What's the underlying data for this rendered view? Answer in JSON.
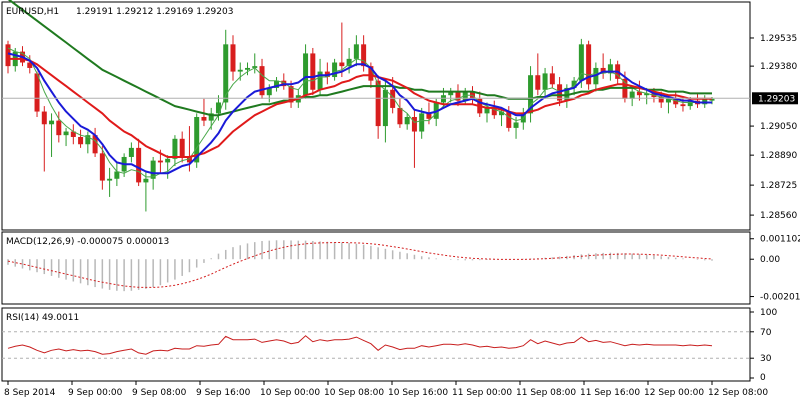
{
  "header": {
    "symbol": "EURUSD,H1",
    "ohlc": "1.29191 1.29212 1.29169 1.29203"
  },
  "chart_data": {
    "type": "candlestick",
    "price_ticks": [
      "1.29535",
      "1.29380",
      "1.29050",
      "1.28890",
      "1.28725",
      "1.28560"
    ],
    "price_ylim": [
      1.285,
      1.297
    ],
    "current_price": "1.29203",
    "x_labels": [
      "8 Sep 2014",
      "9 Sep 00:00",
      "9 Sep 08:00",
      "9 Sep 16:00",
      "10 Sep 00:00",
      "10 Sep 08:00",
      "10 Sep 16:00",
      "11 Sep 00:00",
      "11 Sep 08:00",
      "11 Sep 16:00",
      "12 Sep 00:00",
      "12 Sep 08:00"
    ],
    "candles": [
      [
        1.295,
        1.2952,
        1.2934,
        1.2938
      ],
      [
        1.2938,
        1.2948,
        1.2935,
        1.2946
      ],
      [
        1.2946,
        1.2949,
        1.2938,
        1.294
      ],
      [
        1.294,
        1.2944,
        1.2934,
        1.2937
      ],
      [
        1.2934,
        1.2935,
        1.291,
        1.2913
      ],
      [
        1.2913,
        1.2916,
        1.288,
        1.2906
      ],
      [
        1.2906,
        1.2912,
        1.2888,
        1.2908
      ],
      [
        1.2908,
        1.2913,
        1.2896,
        1.29
      ],
      [
        1.29,
        1.2904,
        1.2894,
        1.2902
      ],
      [
        1.2902,
        1.2906,
        1.2895,
        1.2899
      ],
      [
        1.2899,
        1.2903,
        1.2893,
        1.2895
      ],
      [
        1.2895,
        1.2902,
        1.289,
        1.29
      ],
      [
        1.29,
        1.2904,
        1.2888,
        1.289
      ],
      [
        1.289,
        1.2894,
        1.287,
        1.2875
      ],
      [
        1.2875,
        1.2882,
        1.2866,
        1.2876
      ],
      [
        1.2876,
        1.2885,
        1.2872,
        1.288
      ],
      [
        1.288,
        1.289,
        1.2877,
        1.2888
      ],
      [
        1.2888,
        1.2896,
        1.2885,
        1.2893
      ],
      [
        1.2893,
        1.2898,
        1.2872,
        1.2874
      ],
      [
        1.2874,
        1.288,
        1.2858,
        1.2876
      ],
      [
        1.2876,
        1.2888,
        1.287,
        1.2886
      ],
      [
        1.2886,
        1.2892,
        1.2879,
        1.2885
      ],
      [
        1.2885,
        1.2889,
        1.2876,
        1.2887
      ],
      [
        1.2887,
        1.29,
        1.2883,
        1.2898
      ],
      [
        1.2898,
        1.2902,
        1.2885,
        1.2888
      ],
      [
        1.2888,
        1.2905,
        1.288,
        1.2885
      ],
      [
        1.2885,
        1.2912,
        1.2882,
        1.291
      ],
      [
        1.291,
        1.292,
        1.2905,
        1.2908
      ],
      [
        1.2908,
        1.2915,
        1.2903,
        1.2912
      ],
      [
        1.2912,
        1.2922,
        1.2908,
        1.2918
      ],
      [
        1.2918,
        1.2958,
        1.2914,
        1.295
      ],
      [
        1.295,
        1.2955,
        1.293,
        1.2935
      ],
      [
        1.2935,
        1.294,
        1.293,
        1.2936
      ],
      [
        1.2936,
        1.294,
        1.2933,
        1.2937
      ],
      [
        1.2937,
        1.2945,
        1.2934,
        1.2938
      ],
      [
        1.2938,
        1.2942,
        1.292,
        1.2922
      ],
      [
        1.2922,
        1.2928,
        1.2918,
        1.2926
      ],
      [
        1.2926,
        1.2932,
        1.2924,
        1.293
      ],
      [
        1.293,
        1.2934,
        1.2925,
        1.2927
      ],
      [
        1.2927,
        1.293,
        1.2915,
        1.2918
      ],
      [
        1.2918,
        1.2925,
        1.2915,
        1.2922
      ],
      [
        1.2922,
        1.295,
        1.292,
        1.2945
      ],
      [
        1.2945,
        1.2948,
        1.2922,
        1.2925
      ],
      [
        1.2925,
        1.2942,
        1.2922,
        1.2935
      ],
      [
        1.2935,
        1.294,
        1.2928,
        1.2932
      ],
      [
        1.2932,
        1.2942,
        1.293,
        1.294
      ],
      [
        1.294,
        1.2962,
        1.2932,
        1.2938
      ],
      [
        1.2938,
        1.2948,
        1.2934,
        1.2942
      ],
      [
        1.2942,
        1.2955,
        1.2938,
        1.295
      ],
      [
        1.295,
        1.2955,
        1.2935,
        1.2938
      ],
      [
        1.2938,
        1.294,
        1.2926,
        1.293
      ],
      [
        1.293,
        1.2933,
        1.2898,
        1.2905
      ],
      [
        1.2905,
        1.293,
        1.2896,
        1.2925
      ],
      [
        1.2925,
        1.2932,
        1.2912,
        1.2915
      ],
      [
        1.2915,
        1.292,
        1.2904,
        1.2906
      ],
      [
        1.2906,
        1.2912,
        1.2903,
        1.291
      ],
      [
        1.291,
        1.2914,
        1.2882,
        1.2902
      ],
      [
        1.2902,
        1.2915,
        1.2898,
        1.2912
      ],
      [
        1.2912,
        1.2918,
        1.2906,
        1.2909
      ],
      [
        1.2909,
        1.292,
        1.2905,
        1.2918
      ],
      [
        1.2918,
        1.2926,
        1.2915,
        1.2922
      ],
      [
        1.2922,
        1.2926,
        1.2918,
        1.2924
      ],
      [
        1.2924,
        1.2928,
        1.2916,
        1.2919
      ],
      [
        1.2919,
        1.2926,
        1.2917,
        1.2924
      ],
      [
        1.2924,
        1.2927,
        1.2917,
        1.292
      ],
      [
        1.292,
        1.2924,
        1.291,
        1.2912
      ],
      [
        1.2912,
        1.2918,
        1.2907,
        1.2915
      ],
      [
        1.2915,
        1.2919,
        1.2909,
        1.2911
      ],
      [
        1.2911,
        1.2915,
        1.2905,
        1.2913
      ],
      [
        1.2913,
        1.2916,
        1.2902,
        1.2904
      ],
      [
        1.2904,
        1.291,
        1.2898,
        1.2907
      ],
      [
        1.2907,
        1.2915,
        1.2903,
        1.2912
      ],
      [
        1.2912,
        1.2938,
        1.2907,
        1.2933
      ],
      [
        1.2933,
        1.2945,
        1.2922,
        1.2925
      ],
      [
        1.2925,
        1.2937,
        1.292,
        1.2934
      ],
      [
        1.2934,
        1.2938,
        1.2926,
        1.2928
      ],
      [
        1.2928,
        1.2932,
        1.2916,
        1.2919
      ],
      [
        1.2919,
        1.2928,
        1.2915,
        1.2926
      ],
      [
        1.2926,
        1.2932,
        1.2922,
        1.293
      ],
      [
        1.293,
        1.2953,
        1.2926,
        1.295
      ],
      [
        1.295,
        1.2952,
        1.2925,
        1.2928
      ],
      [
        1.2928,
        1.294,
        1.2924,
        1.2937
      ],
      [
        1.2937,
        1.2945,
        1.2931,
        1.2934
      ],
      [
        1.2934,
        1.2942,
        1.293,
        1.2939
      ],
      [
        1.2939,
        1.2941,
        1.2928,
        1.2931
      ],
      [
        1.2931,
        1.2935,
        1.2918,
        1.292
      ],
      [
        1.292,
        1.2927,
        1.2916,
        1.2924
      ],
      [
        1.2924,
        1.293,
        1.2919,
        1.2922
      ],
      [
        1.2922,
        1.2926,
        1.2917,
        1.2923
      ],
      [
        1.2923,
        1.2926,
        1.2918,
        1.2921
      ],
      [
        1.2921,
        1.2924,
        1.2915,
        1.2918
      ],
      [
        1.2918,
        1.2922,
        1.2912,
        1.292
      ],
      [
        1.292,
        1.2924,
        1.2915,
        1.2917
      ],
      [
        1.2917,
        1.292,
        1.2913,
        1.2916
      ],
      [
        1.2916,
        1.2921,
        1.2914,
        1.2919
      ],
      [
        1.2919,
        1.2923,
        1.2915,
        1.2917
      ],
      [
        1.2917,
        1.2922,
        1.2915,
        1.292
      ],
      [
        1.2919,
        1.2921,
        1.2917,
        1.292
      ]
    ],
    "ma_blue": [
      1.2945,
      1.2944,
      1.2943,
      1.2941,
      1.2937,
      1.293,
      1.2924,
      1.2918,
      1.2913,
      1.2909,
      1.2905,
      1.2903,
      1.29,
      1.2895,
      1.2889,
      1.2885,
      1.2884,
      1.2884,
      1.2882,
      1.288,
      1.2879,
      1.2879,
      1.2879,
      1.2881,
      1.2883,
      1.2884,
      1.2888,
      1.2892,
      1.2896,
      1.2901,
      1.2908,
      1.2913,
      1.2917,
      1.2921,
      1.2924,
      1.2925,
      1.2926,
      1.2927,
      1.2928,
      1.2928,
      1.2929,
      1.2932,
      1.2932,
      1.2933,
      1.2933,
      1.2934,
      1.2935,
      1.2937,
      1.2939,
      1.2939,
      1.2937,
      1.2932,
      1.293,
      1.2927,
      1.2922,
      1.2919,
      1.2914,
      1.2913,
      1.2912,
      1.2913,
      1.2915,
      1.2917,
      1.2918,
      1.2919,
      1.292,
      1.2918,
      1.2917,
      1.2916,
      1.2915,
      1.2913,
      1.2911,
      1.2911,
      1.2915,
      1.2918,
      1.2921,
      1.2923,
      1.2924,
      1.2925,
      1.2926,
      1.293,
      1.2932,
      1.2933,
      1.2935,
      1.2935,
      1.2935,
      1.2932,
      1.2929,
      1.2927,
      1.2925,
      1.2923,
      1.2922,
      1.2921,
      1.292,
      1.2919,
      1.2919,
      1.2918,
      1.2918,
      1.2918
    ],
    "ma_red": [
      1.2942,
      1.2942,
      1.2942,
      1.2941,
      1.2939,
      1.2936,
      1.2933,
      1.293,
      1.2927,
      1.2924,
      1.2921,
      1.2918,
      1.2915,
      1.2912,
      1.2908,
      1.2905,
      1.2902,
      1.29,
      1.2897,
      1.2894,
      1.2892,
      1.289,
      1.2888,
      1.2888,
      1.2888,
      1.2888,
      1.2889,
      1.289,
      1.2892,
      1.2894,
      1.2898,
      1.2902,
      1.2905,
      1.2908,
      1.2911,
      1.2913,
      1.2915,
      1.2917,
      1.2918,
      1.2919,
      1.292,
      1.2922,
      1.2923,
      1.2925,
      1.2926,
      1.2927,
      1.2929,
      1.293,
      1.2932,
      1.2933,
      1.2933,
      1.2932,
      1.2931,
      1.293,
      1.2928,
      1.2926,
      1.2923,
      1.2921,
      1.2919,
      1.2918,
      1.2917,
      1.2917,
      1.2917,
      1.2917,
      1.2917,
      1.2916,
      1.2915,
      1.2915,
      1.2914,
      1.2913,
      1.2912,
      1.2912,
      1.2913,
      1.2914,
      1.2916,
      1.2917,
      1.2918,
      1.2919,
      1.292,
      1.2922,
      1.2923,
      1.2925,
      1.2926,
      1.2927,
      1.2928,
      1.2928,
      1.2927,
      1.2926,
      1.2925,
      1.2924,
      1.2923,
      1.2922,
      1.2922,
      1.2921,
      1.292,
      1.292,
      1.292,
      1.292
    ],
    "ma_green": [
      1.2975,
      1.2972,
      1.2969,
      1.2966,
      1.2963,
      1.296,
      1.2957,
      1.2954,
      1.2951,
      1.2948,
      1.2945,
      1.2942,
      1.2939,
      1.2936,
      1.2934,
      1.2932,
      1.293,
      1.2928,
      1.2926,
      1.2924,
      1.2922,
      1.292,
      1.2918,
      1.2916,
      1.2915,
      1.2914,
      1.2913,
      1.2912,
      1.2911,
      1.2911,
      1.2912,
      1.2913,
      1.2914,
      1.2915,
      1.2916,
      1.2917,
      1.2917,
      1.2918,
      1.2919,
      1.2919,
      1.292,
      1.2921,
      1.2921,
      1.2922,
      1.2922,
      1.2923,
      1.2924,
      1.2925,
      1.2926,
      1.2927,
      1.2927,
      1.2927,
      1.2927,
      1.2927,
      1.2926,
      1.2926,
      1.2925,
      1.2925,
      1.2924,
      1.2924,
      1.2924,
      1.2924,
      1.2924,
      1.2924,
      1.2924,
      1.2923,
      1.2922,
      1.2922,
      1.2921,
      1.292,
      1.292,
      1.292,
      1.292,
      1.2921,
      1.2921,
      1.2922,
      1.2922,
      1.2922,
      1.2923,
      1.2924,
      1.2924,
      1.2925,
      1.2925,
      1.2926,
      1.2926,
      1.2926,
      1.2926,
      1.2926,
      1.2925,
      1.2925,
      1.2925,
      1.2924,
      1.2924,
      1.2924,
      1.2923,
      1.2923,
      1.2923,
      1.2923
    ],
    "ma_thin": [
      1.2948,
      1.2946,
      1.2945,
      1.2942,
      1.2934,
      1.2924,
      1.2916,
      1.2909,
      1.2905,
      1.2902,
      1.29,
      1.2899,
      1.2897,
      1.2892,
      1.2885,
      1.288,
      1.2879,
      1.2881,
      1.288,
      1.2877,
      1.2877,
      1.2879,
      1.288,
      1.2884,
      1.2886,
      1.2887,
      1.2893,
      1.2899,
      1.2905,
      1.2911,
      1.2922,
      1.2928,
      1.2932,
      1.2935,
      1.2937,
      1.2933,
      1.293,
      1.293,
      1.2929,
      1.2926,
      1.2925,
      1.293,
      1.293,
      1.2932,
      1.2932,
      1.2935,
      1.2936,
      1.2939,
      1.2942,
      1.2941,
      1.2937,
      1.2928,
      1.2925,
      1.2921,
      1.2915,
      1.2912,
      1.2907,
      1.2908,
      1.2908,
      1.2912,
      1.2916,
      1.2919,
      1.292,
      1.2922,
      1.2922,
      1.2918,
      1.2916,
      1.2914,
      1.2913,
      1.291,
      1.2908,
      1.2909,
      1.2917,
      1.292,
      1.2925,
      1.2926,
      1.2924,
      1.2925,
      1.2927,
      1.2934,
      1.2933,
      1.2934,
      1.2934,
      1.2935,
      1.2933,
      1.2929,
      1.2926,
      1.2924,
      1.2923,
      1.2922,
      1.2921,
      1.292,
      1.2919,
      1.2918,
      1.2918,
      1.2918,
      1.2918,
      1.2918
    ],
    "macd": {
      "label": "MACD(12,26,9) -0.000075 0.000013",
      "ticks": [
        "0.001102",
        "0.00",
        "-0.00201"
      ],
      "ylim": [
        -0.00225,
        0.00125
      ],
      "histogram": [
        -0.0003,
        -0.0004,
        -0.0005,
        -0.0006,
        -0.0007,
        -0.0008,
        -0.0009,
        -0.001,
        -0.0011,
        -0.0012,
        -0.0013,
        -0.0014,
        -0.0015,
        -0.00158,
        -0.00165,
        -0.0017,
        -0.00172,
        -0.0017,
        -0.00165,
        -0.0016,
        -0.0015,
        -0.0014,
        -0.00125,
        -0.0011,
        -0.0009,
        -0.0007,
        -0.00045,
        -0.0002,
        5e-05,
        0.0003,
        0.0005,
        0.00065,
        0.00075,
        0.00085,
        0.00092,
        0.00098,
        0.001,
        0.00102,
        0.00102,
        0.00101,
        0.001,
        0.001,
        0.00098,
        0.00096,
        0.00094,
        0.00092,
        0.0009,
        0.00087,
        0.00083,
        0.00078,
        0.00072,
        0.00064,
        0.00056,
        0.00048,
        0.0004,
        0.00032,
        0.00024,
        0.00016,
        0.0001,
        4e-05,
        0.0,
        -3e-05,
        -5e-05,
        -6e-05,
        -6e-05,
        -5e-05,
        -4e-05,
        -3e-05,
        -2e-05,
        -1e-05,
        0.0,
        2e-05,
        4e-05,
        6e-05,
        8e-05,
        0.0001,
        0.00014,
        0.00018,
        0.00022,
        0.00026,
        0.0003,
        0.00032,
        0.00034,
        0.00035,
        0.00034,
        0.00032,
        0.0003,
        0.00027,
        0.00024,
        0.0002,
        0.00016,
        0.00012,
        8e-05,
        4e-05,
        0.0,
        -3e-05,
        -6e-05,
        -8e-05
      ],
      "signal": [
        -0.0001,
        -0.00018,
        -0.00026,
        -0.00035,
        -0.00044,
        -0.00053,
        -0.00062,
        -0.00071,
        -0.0008,
        -0.00089,
        -0.00098,
        -0.00107,
        -0.00116,
        -0.00124,
        -0.00131,
        -0.00138,
        -0.00144,
        -0.00148,
        -0.00151,
        -0.00152,
        -0.00152,
        -0.0015,
        -0.00146,
        -0.0014,
        -0.00132,
        -0.00122,
        -0.0011,
        -0.00096,
        -0.0008,
        -0.00062,
        -0.00044,
        -0.00027,
        -0.00011,
        4e-05,
        0.00018,
        0.00032,
        0.00044,
        0.00055,
        0.00064,
        0.00072,
        0.00078,
        0.00083,
        0.00086,
        0.00088,
        0.00089,
        0.0009,
        0.0009,
        0.00089,
        0.00088,
        0.00086,
        0.00083,
        0.00079,
        0.00074,
        0.00068,
        0.00062,
        0.00055,
        0.00048,
        0.00041,
        0.00034,
        0.00028,
        0.00022,
        0.00017,
        0.00012,
        8e-05,
        5e-05,
        3e-05,
        1e-05,
        0.0,
        -1e-05,
        -1e-05,
        -1e-05,
        -1e-05,
        0.0,
        1e-05,
        3e-05,
        5e-05,
        7e-05,
        0.0001,
        0.00013,
        0.00016,
        0.00019,
        0.00022,
        0.00024,
        0.00026,
        0.00027,
        0.00028,
        0.00028,
        0.00027,
        0.00026,
        0.00024,
        0.00022,
        0.00019,
        0.00016,
        0.00013,
        0.0001,
        7e-05,
        4e-05,
        1e-05
      ]
    },
    "rsi": {
      "label": "RSI(14) 49.0011",
      "ticks": [
        "100",
        "70",
        "30",
        "0"
      ],
      "levels": [
        70,
        30
      ],
      "ylim": [
        0,
        100
      ],
      "values": [
        45,
        48,
        50,
        47,
        42,
        38,
        42,
        44,
        41,
        43,
        41,
        42,
        40,
        36,
        37,
        40,
        42,
        44,
        38,
        36,
        41,
        42,
        41,
        45,
        44,
        44,
        49,
        48,
        50,
        51,
        63,
        58,
        58,
        58,
        59,
        54,
        56,
        58,
        56,
        52,
        54,
        64,
        55,
        58,
        56,
        58,
        58,
        59,
        62,
        57,
        52,
        42,
        50,
        47,
        43,
        45,
        45,
        49,
        47,
        49,
        51,
        51,
        50,
        52,
        50,
        47,
        48,
        46,
        47,
        45,
        46,
        49,
        58,
        52,
        56,
        53,
        50,
        53,
        54,
        62,
        55,
        57,
        54,
        55,
        52,
        49,
        51,
        50,
        51,
        50,
        50,
        50,
        50,
        49,
        50,
        49,
        50,
        49
      ]
    },
    "colors": {
      "bull": "#2e9b2e",
      "bear": "#d81e1e",
      "ma_blue": "#1a1ad8",
      "ma_red": "#e01a1a",
      "ma_green": "#1f7a1f",
      "ma_thin": "#4aa84a",
      "macd_hist": "#b8b8b8",
      "macd_signal": "#d42020",
      "rsi": "#c81e1e",
      "grid": "#000000",
      "price_tag_bg": "#000000",
      "price_tag_fg": "#ffffff"
    }
  }
}
